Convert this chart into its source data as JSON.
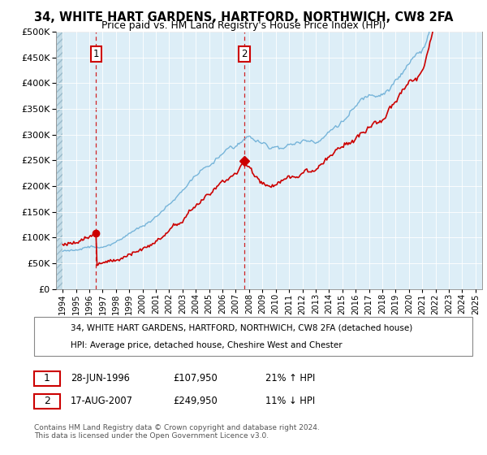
{
  "title": "34, WHITE HART GARDENS, HARTFORD, NORTHWICH, CW8 2FA",
  "subtitle": "Price paid vs. HM Land Registry's House Price Index (HPI)",
  "legend_line1": "34, WHITE HART GARDENS, HARTFORD, NORTHWICH, CW8 2FA (detached house)",
  "legend_line2": "HPI: Average price, detached house, Cheshire West and Chester",
  "annotation1_date": "28-JUN-1996",
  "annotation1_price": "£107,950",
  "annotation1_hpi": "21% ↑ HPI",
  "annotation2_date": "17-AUG-2007",
  "annotation2_price": "£249,950",
  "annotation2_hpi": "11% ↓ HPI",
  "footer": "Contains HM Land Registry data © Crown copyright and database right 2024.\nThis data is licensed under the Open Government Licence v3.0.",
  "sale1_x": 1996.5,
  "sale1_y": 107950,
  "sale2_x": 2007.63,
  "sale2_y": 249950,
  "hpi_color": "#6baed6",
  "price_color": "#cc0000",
  "background_plot": "#ddeef7",
  "ylim": [
    0,
    500000
  ],
  "xlim_start": 1993.5,
  "xlim_end": 2025.5
}
